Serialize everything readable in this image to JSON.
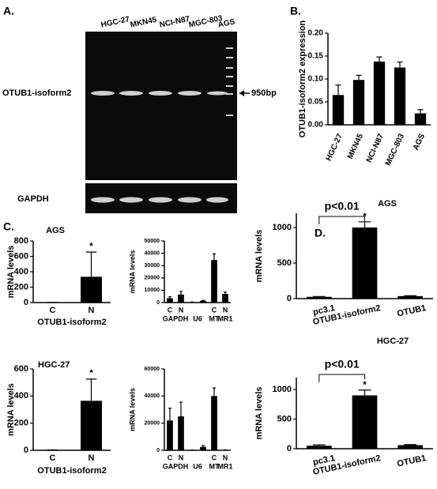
{
  "panels": [
    "A.",
    "B.",
    "C.",
    "D."
  ],
  "gel": {
    "lanes": [
      "HGC-27",
      "MKN45",
      "NCI-N87",
      "MGC-803",
      "AGS"
    ],
    "band_label": "OTUB1-isoform2",
    "marker": "950bp",
    "control_label": "GAPDH"
  },
  "chart_data": [
    {
      "type": "bar",
      "ylabel": "OTUB1-isoform2 expression",
      "categories": [
        "HGC-27",
        "MKN45",
        "NCI-N87",
        "MGC-803",
        "AGS"
      ],
      "values": [
        0.065,
        0.098,
        0.138,
        0.125,
        0.025
      ],
      "errors": [
        0.022,
        0.01,
        0.01,
        0.012,
        0.008
      ],
      "ylim": [
        0,
        0.2
      ],
      "yticks": [
        {
          "value": 0,
          "label": "0.00"
        },
        {
          "value": 0.05,
          "label": "0.05"
        },
        {
          "value": 0.1,
          "label": "0.10"
        },
        {
          "value": 0.15,
          "label": "0.15"
        },
        {
          "value": 0.2,
          "label": "0.20"
        }
      ],
      "color": "#000000"
    },
    {
      "type": "bar",
      "title": "AGS",
      "ylabel": "mRNA levels",
      "xlabel": "OTUB1-isoform2",
      "categories": [
        "C",
        "N"
      ],
      "values": [
        2,
        335
      ],
      "errors": [
        0,
        320
      ],
      "ylim": [
        0,
        800
      ],
      "yticks": [
        0,
        200,
        400,
        600,
        800
      ],
      "annotations": [
        "*"
      ],
      "color": "#000000"
    },
    {
      "type": "bar",
      "ylabel": "mRNA levels",
      "categories": [
        "C",
        "N",
        null,
        null,
        "C",
        "N"
      ],
      "groups": [
        "GAPDH",
        "U6",
        "MT",
        "MR1"
      ],
      "values": [
        3500,
        6500,
        300,
        1500,
        34500,
        7000
      ],
      "errors": [
        1200,
        2500,
        100,
        300,
        5000,
        1500
      ],
      "ylim": [
        0,
        50000
      ],
      "yticks": [
        0,
        10000,
        20000,
        30000,
        40000,
        50000
      ],
      "color": "#000000"
    },
    {
      "type": "bar",
      "title": "HGC-27",
      "ylabel": "mRNA levels",
      "xlabel": "OTUB1-isoform2",
      "categories": [
        "C",
        "N"
      ],
      "values": [
        3,
        365
      ],
      "errors": [
        0,
        160
      ],
      "ylim": [
        0,
        600
      ],
      "yticks": [
        0,
        200,
        400,
        600
      ],
      "annotations": [
        "*"
      ],
      "color": "#000000"
    },
    {
      "type": "bar",
      "ylabel": "mRNA levels",
      "categories": [
        "C",
        "N",
        null,
        null,
        "C",
        "N"
      ],
      "groups": [
        "GAPDH",
        "U6",
        "MT",
        "MR1"
      ],
      "values": [
        22000,
        25000,
        200,
        2500,
        40000,
        300
      ],
      "errors": [
        9000,
        10500,
        0,
        1000,
        6000,
        0
      ],
      "ylim": [
        0,
        60000
      ],
      "yticks": [
        0,
        20000,
        40000,
        60000
      ],
      "color": "#000000"
    },
    {
      "type": "bar",
      "title": "AGS",
      "ylabel": "mRNA levels",
      "categories": [
        "pc3.1",
        "OTUB1-isoform2",
        "OTUB1"
      ],
      "values": [
        25,
        1000,
        35
      ],
      "errors": [
        5,
        80,
        5
      ],
      "ylim": [
        0,
        1200
      ],
      "yticks": [
        0,
        500,
        1000
      ],
      "annotations": [
        "p<0.01",
        "*"
      ],
      "color": "#000000"
    },
    {
      "type": "bar",
      "title": "HGC-27",
      "ylabel": "mRNA levels",
      "categories": [
        "pc3.1",
        "OTUB1-isoform2",
        "OTUB1"
      ],
      "values": [
        50,
        900,
        60
      ],
      "errors": [
        15,
        90,
        10
      ],
      "ylim": [
        0,
        1200
      ],
      "yticks": [
        0,
        500,
        1000
      ],
      "annotations": [
        "p<0.01",
        "*"
      ],
      "color": "#000000"
    }
  ]
}
